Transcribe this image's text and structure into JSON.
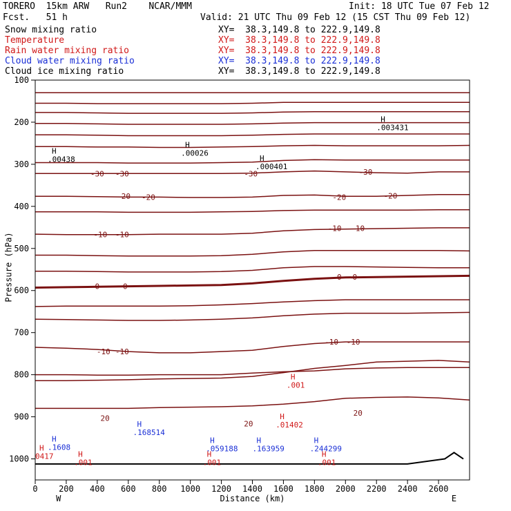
{
  "header": {
    "model": "TORERO  15km ARW   Run2    NCAR/MMM",
    "init": "Init: 18 UTC Tue 07 Feb 12",
    "fcst": "Fcst.   51 h",
    "valid": "Valid: 21 UTC Thu 09 Feb 12 (15 CST Thu 09 Feb 12)"
  },
  "fields": [
    {
      "name": "Snow mixing ratio",
      "xy": "XY=  38.3,149.8 to 222.9,149.8",
      "color": "#000000"
    },
    {
      "name": "Temperature",
      "xy": "XY=  38.3,149.8 to 222.9,149.8",
      "color": "#d01818"
    },
    {
      "name": "Rain water mixing ratio",
      "xy": "XY=  38.3,149.8 to 222.9,149.8",
      "color": "#d01818"
    },
    {
      "name": "Cloud water mixing ratio",
      "xy": "XY=  38.3,149.8 to 222.9,149.8",
      "color": "#1a2fd6"
    },
    {
      "name": "Cloud ice mixing ratio",
      "xy": "XY=  38.3,149.8 to 222.9,149.8",
      "color": "#000000"
    }
  ],
  "chart_data": {
    "type": "contour-cross-section",
    "xlabel": "Distance (km)",
    "ylabel": "Pressure (hPa)",
    "xlim": [
      0,
      2800
    ],
    "ylim": [
      100,
      1050
    ],
    "x_ticks": [
      "0",
      "200",
      "400",
      "600",
      "800",
      "1000",
      "1200",
      "1400",
      "1600",
      "1800",
      "2000",
      "2200",
      "2400",
      "2600"
    ],
    "y_ticks": [
      "100",
      "200",
      "300",
      "400",
      "500",
      "600",
      "700",
      "800",
      "900",
      "1000"
    ],
    "left_end": "W",
    "right_end": "E",
    "temperature_label_pairs": [
      {
        "text": "-30",
        "x": 400,
        "p": 322
      },
      {
        "text": "-30",
        "x": 560,
        "p": 322
      },
      {
        "text": "-30",
        "x": 1390,
        "p": 322
      },
      {
        "text": "-30",
        "x": 2130,
        "p": 318
      },
      {
        "text": "-20",
        "x": 570,
        "p": 376
      },
      {
        "text": "-20",
        "x": 730,
        "p": 378
      },
      {
        "text": "-20",
        "x": 1960,
        "p": 378
      },
      {
        "text": "-20",
        "x": 2290,
        "p": 375
      },
      {
        "text": "-10",
        "x": 420,
        "p": 467
      },
      {
        "text": "-10",
        "x": 560,
        "p": 467
      },
      {
        "text": "-10",
        "x": 1930,
        "p": 452
      },
      {
        "text": "-10",
        "x": 2080,
        "p": 452
      },
      {
        "text": "0",
        "x": 400,
        "p": 590
      },
      {
        "text": "0",
        "x": 580,
        "p": 590
      },
      {
        "text": "0",
        "x": 1960,
        "p": 568
      },
      {
        "text": "0",
        "x": 2060,
        "p": 568
      },
      {
        "text": "-10",
        "x": 440,
        "p": 745
      },
      {
        "text": "-10",
        "x": 560,
        "p": 745
      },
      {
        "text": "-10",
        "x": 1910,
        "p": 722
      },
      {
        "text": "-10",
        "x": 2050,
        "p": 722
      },
      {
        "text": "20",
        "x": 450,
        "p": 903
      },
      {
        "text": "20",
        "x": 1375,
        "p": 916
      },
      {
        "text": "20",
        "x": 2080,
        "p": 891
      }
    ],
    "temperature_contours_hPa_at_x": {
      "x": [
        0,
        200,
        400,
        600,
        800,
        1000,
        1200,
        1400,
        1600,
        1800,
        2000,
        2200,
        2400,
        2600,
        2800
      ],
      "lines": [
        [
          130,
          130,
          130,
          130,
          130,
          130,
          130,
          130,
          130,
          130,
          130,
          130,
          130,
          130,
          130
        ],
        [
          155,
          155,
          156,
          156,
          156,
          156,
          156,
          155,
          153,
          153,
          153,
          153,
          153,
          153,
          153
        ],
        [
          177,
          177,
          178,
          179,
          179,
          179,
          179,
          178,
          176,
          175,
          175,
          175,
          175,
          175,
          175
        ],
        [
          203,
          203,
          204,
          205,
          205,
          205,
          205,
          204,
          202,
          201,
          201,
          201,
          201,
          201,
          201
        ],
        [
          230,
          230,
          231,
          232,
          232,
          232,
          232,
          231,
          229,
          228,
          228,
          228,
          228,
          228,
          228
        ],
        [
          258,
          258,
          259,
          259,
          260,
          260,
          259,
          258,
          256,
          255,
          256,
          256,
          256,
          256,
          255
        ],
        [
          296,
          296,
          296,
          297,
          297,
          297,
          296,
          295,
          291,
          289,
          290,
          290,
          290,
          290,
          290
        ],
        [
          322,
          322,
          322,
          322,
          322,
          322,
          322,
          321,
          318,
          316,
          318,
          320,
          321,
          318,
          318
        ],
        [
          376,
          376,
          377,
          378,
          378,
          379,
          379,
          378,
          374,
          373,
          376,
          376,
          374,
          372,
          372
        ],
        [
          413,
          413,
          413,
          414,
          414,
          414,
          413,
          412,
          410,
          409,
          409,
          409,
          409,
          408,
          408
        ],
        [
          466,
          467,
          467,
          467,
          466,
          466,
          466,
          464,
          458,
          455,
          454,
          453,
          452,
          451,
          451
        ],
        [
          516,
          516,
          517,
          518,
          518,
          518,
          517,
          514,
          508,
          505,
          505,
          505,
          505,
          505,
          506
        ],
        [
          554,
          554,
          555,
          556,
          556,
          556,
          555,
          552,
          546,
          543,
          543,
          544,
          545,
          546,
          546
        ],
        [
          593,
          592,
          591,
          590,
          589,
          588,
          587,
          583,
          577,
          572,
          569,
          568,
          567,
          566,
          565
        ],
        [
          638,
          637,
          637,
          637,
          637,
          636,
          634,
          631,
          627,
          624,
          622,
          622,
          622,
          622,
          622
        ],
        [
          668,
          669,
          670,
          671,
          671,
          670,
          668,
          665,
          660,
          656,
          654,
          654,
          654,
          653,
          652
        ],
        [
          735,
          737,
          740,
          745,
          748,
          748,
          745,
          742,
          733,
          726,
          722,
          722,
          722,
          722,
          722
        ],
        [
          800,
          800,
          801,
          801,
          800,
          800,
          800,
          796,
          793,
          791,
          786,
          784,
          783,
          783,
          783
        ],
        [
          814,
          814,
          813,
          812,
          810,
          809,
          808,
          804,
          795,
          785,
          778,
          770,
          768,
          766,
          770
        ],
        [
          880,
          880,
          880,
          880,
          878,
          877,
          876,
          874,
          870,
          864,
          856,
          854,
          853,
          855,
          860
        ]
      ]
    },
    "max_annotations": [
      {
        "text": ".00438",
        "x": 80,
        "p": 288,
        "color": "#000000"
      },
      {
        "text": ".00026",
        "x": 940,
        "p": 273,
        "color": "#000000"
      },
      {
        "text": ".000401",
        "x": 1420,
        "p": 305,
        "color": "#000000"
      },
      {
        "text": ".003431",
        "x": 2200,
        "p": 212,
        "color": "#000000"
      },
      {
        "text": ".1608",
        "x": 80,
        "p": 972,
        "color": "#1a2fd6"
      },
      {
        "text": ".168514",
        "x": 630,
        "p": 937,
        "color": "#1a2fd6"
      },
      {
        "text": ".059188",
        "x": 1100,
        "p": 975,
        "color": "#1a2fd6"
      },
      {
        "text": ".163959",
        "x": 1400,
        "p": 975,
        "color": "#1a2fd6"
      },
      {
        "text": ".244299",
        "x": 1770,
        "p": 975,
        "color": "#1a2fd6"
      },
      {
        "text": ".01402",
        "x": 1550,
        "p": 919,
        "color": "#d01818"
      },
      {
        "text": ".001",
        "x": 1620,
        "p": 824,
        "color": "#d01818"
      },
      {
        "text": ".001",
        "x": 250,
        "p": 1008,
        "color": "#d01818"
      },
      {
        "text": ".001",
        "x": 1080,
        "p": 1008,
        "color": "#d01818"
      },
      {
        "text": ".001",
        "x": 1820,
        "p": 1008,
        "color": "#d01818"
      },
      {
        "text": "0417",
        "x": 0,
        "p": 993,
        "color": "#d01818"
      }
    ],
    "terrain": [
      [
        0,
        1012
      ],
      [
        2400,
        1012
      ],
      [
        2640,
        1000
      ],
      [
        2700,
        985
      ],
      [
        2760,
        1000
      ]
    ]
  }
}
